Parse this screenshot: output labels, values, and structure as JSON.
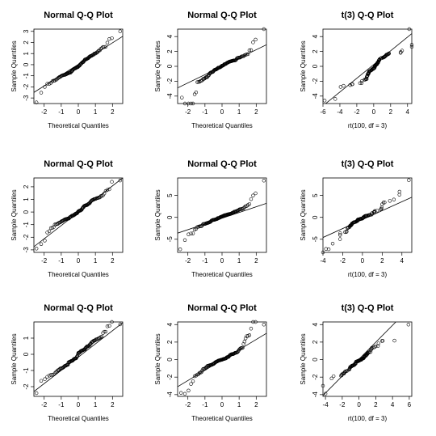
{
  "colors": {
    "background": "#ffffff",
    "ink": "#000000"
  },
  "chart_data": [
    {
      "type": "scatter",
      "title": "Normal Q-Q Plot",
      "xlabel": "Theoretical Quantiles",
      "ylabel": "Sample Quantiles",
      "xlim": [
        -2.6,
        2.6
      ],
      "ylim": [
        -3.5,
        3.2
      ],
      "xticks": [
        -2,
        -1,
        0,
        1,
        2
      ],
      "yticks": [
        -3,
        -2,
        -1,
        0,
        1,
        2,
        3
      ],
      "dist": "normal",
      "sample": "normal",
      "seed": 11,
      "scale": 1.0,
      "line": [
        -2.6,
        -2.5,
        2.6,
        2.55
      ],
      "extremes": [
        [
          -2.45,
          -3.4
        ],
        [
          2.45,
          3.0
        ]
      ]
    },
    {
      "type": "scatter",
      "title": "Normal Q-Q Plot",
      "xlabel": "Theoretical Quantiles",
      "ylabel": "Sample Quantiles",
      "xlim": [
        -2.6,
        2.6
      ],
      "ylim": [
        -5,
        5
      ],
      "xticks": [
        -2,
        -1,
        0,
        1,
        2
      ],
      "yticks": [
        -4,
        -2,
        0,
        2,
        4
      ],
      "dist": "normal",
      "sample": "t3",
      "seed": 22,
      "scale": 1.0,
      "line": [
        -2.6,
        -2.9,
        2.6,
        2.9
      ],
      "extremes": [
        [
          -2.35,
          -4.2
        ],
        [
          2.45,
          5.0
        ]
      ]
    },
    {
      "type": "scatter",
      "title": "t(3) Q-Q Plot",
      "xlabel": "rt(100, df = 3)",
      "ylabel": "Sample Quantiles",
      "xlim": [
        -6,
        4.5
      ],
      "ylim": [
        -5,
        5
      ],
      "xticks": [
        -6,
        -4,
        -2,
        0,
        2,
        4
      ],
      "yticks": [
        -4,
        -2,
        0,
        2,
        4
      ],
      "dist": "t3",
      "sample": "t3",
      "seed": 33,
      "scale": 1.0,
      "line": [
        -6,
        -5.3,
        4.5,
        4.4
      ],
      "extremes": [
        [
          -5.8,
          -4.6
        ],
        [
          4.2,
          5.0
        ]
      ]
    },
    {
      "type": "scatter",
      "title": "Normal Q-Q Plot",
      "xlabel": "Theoretical Quantiles",
      "ylabel": "Sample Quantiles",
      "xlim": [
        -2.6,
        2.6
      ],
      "ylim": [
        -3.2,
        2.7
      ],
      "xticks": [
        -2,
        -1,
        0,
        1,
        2
      ],
      "yticks": [
        -3,
        -2,
        -1,
        0,
        1,
        2
      ],
      "dist": "normal",
      "sample": "normal",
      "seed": 44,
      "scale": 1.0,
      "line": [
        -2.6,
        -2.75,
        2.6,
        2.7
      ],
      "extremes": [
        [
          -2.45,
          -2.9
        ],
        [
          2.45,
          2.5
        ]
      ]
    },
    {
      "type": "scatter",
      "title": "Normal Q-Q Plot",
      "xlabel": "Theoretical Quantiles",
      "ylabel": "Sample Quantiles",
      "xlim": [
        -2.6,
        2.6
      ],
      "ylim": [
        -8,
        9
      ],
      "xticks": [
        -2,
        -1,
        0,
        1,
        2
      ],
      "yticks": [
        -5,
        0,
        5
      ],
      "dist": "normal",
      "sample": "t3",
      "seed": 55,
      "scale": 1.25,
      "line": [
        -2.6,
        -3.6,
        2.6,
        3.2
      ],
      "extremes": [
        [
          -2.45,
          -7.3
        ],
        [
          2.45,
          8.4
        ]
      ]
    },
    {
      "type": "scatter",
      "title": "t(3) Q-Q Plot",
      "xlabel": "rt(100, df = 3)",
      "ylabel": "Sample Quantiles",
      "xlim": [
        -4,
        5
      ],
      "ylim": [
        -8,
        9
      ],
      "xticks": [
        -4,
        -2,
        0,
        2,
        4
      ],
      "yticks": [
        -5,
        0,
        5
      ],
      "dist": "t3",
      "sample": "t3",
      "seed": 66,
      "scale": 1.25,
      "line": [
        -4,
        -4.6,
        5,
        4.6
      ],
      "extremes": [
        [
          -3.7,
          -7.2
        ],
        [
          4.7,
          8.5
        ]
      ]
    },
    {
      "type": "scatter",
      "title": "Normal Q-Q Plot",
      "xlabel": "Theoretical Quantiles",
      "ylabel": "Sample Quantiles",
      "xlim": [
        -2.6,
        2.6
      ],
      "ylim": [
        -2.6,
        2.0
      ],
      "xticks": [
        -2,
        -1,
        0,
        1,
        2
      ],
      "yticks": [
        -2,
        -1,
        0,
        1
      ],
      "dist": "normal",
      "sample": "normal",
      "seed": 77,
      "scale": 0.85,
      "line": [
        -2.6,
        -2.3,
        2.6,
        1.95
      ],
      "extremes": [
        [
          -2.45,
          -2.4
        ],
        [
          2.45,
          1.85
        ]
      ]
    },
    {
      "type": "scatter",
      "title": "Normal Q-Q Plot",
      "xlabel": "Theoretical Quantiles",
      "ylabel": "Sample Quantiles",
      "xlim": [
        -2.6,
        2.6
      ],
      "ylim": [
        -4.2,
        4.3
      ],
      "xticks": [
        -2,
        -1,
        0,
        1,
        2
      ],
      "yticks": [
        -4,
        -2,
        0,
        2,
        4
      ],
      "dist": "normal",
      "sample": "t3",
      "seed": 88,
      "scale": 0.9,
      "line": [
        -2.6,
        -3.1,
        2.6,
        3.0
      ],
      "extremes": [
        [
          -2.4,
          -3.8
        ],
        [
          2.45,
          4.0
        ]
      ]
    },
    {
      "type": "scatter",
      "title": "t(3) Q-Q Plot",
      "xlabel": "rt(100, df = 3)",
      "ylabel": "Sample Quantiles",
      "xlim": [
        -4.3,
        6.3
      ],
      "ylim": [
        -4.2,
        4.3
      ],
      "xticks": [
        -4,
        -2,
        0,
        2,
        4,
        6
      ],
      "yticks": [
        -4,
        -2,
        0,
        2,
        4
      ],
      "dist": "t3",
      "sample": "t3",
      "seed": 99,
      "scale": 0.8,
      "line": [
        -4.3,
        -4.1,
        4.4,
        4.3
      ],
      "extremes": [
        [
          -4.0,
          -3.9
        ],
        [
          5.9,
          4.0
        ]
      ]
    }
  ]
}
